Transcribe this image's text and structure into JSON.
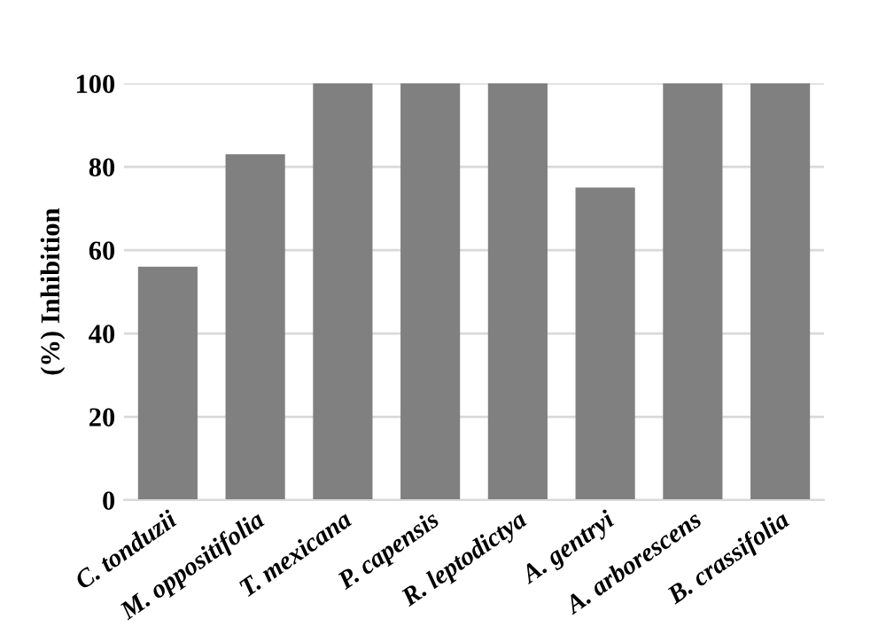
{
  "chart_data": {
    "type": "bar",
    "ylabel": "(%) Inhibition",
    "categories": [
      "C. tonduzii",
      "M. oppositifolia",
      "T. mexicana",
      "P. capensis",
      "R. leptodictya",
      "A. gentryi",
      "A. arborescens",
      "B. crassifolia"
    ],
    "values": [
      56,
      83,
      100,
      100,
      100,
      75,
      100,
      100
    ],
    "color": "#808080",
    "ylim": [
      0,
      100
    ],
    "yticks": [
      0,
      20,
      40,
      60,
      80,
      100
    ],
    "grid": "y"
  }
}
